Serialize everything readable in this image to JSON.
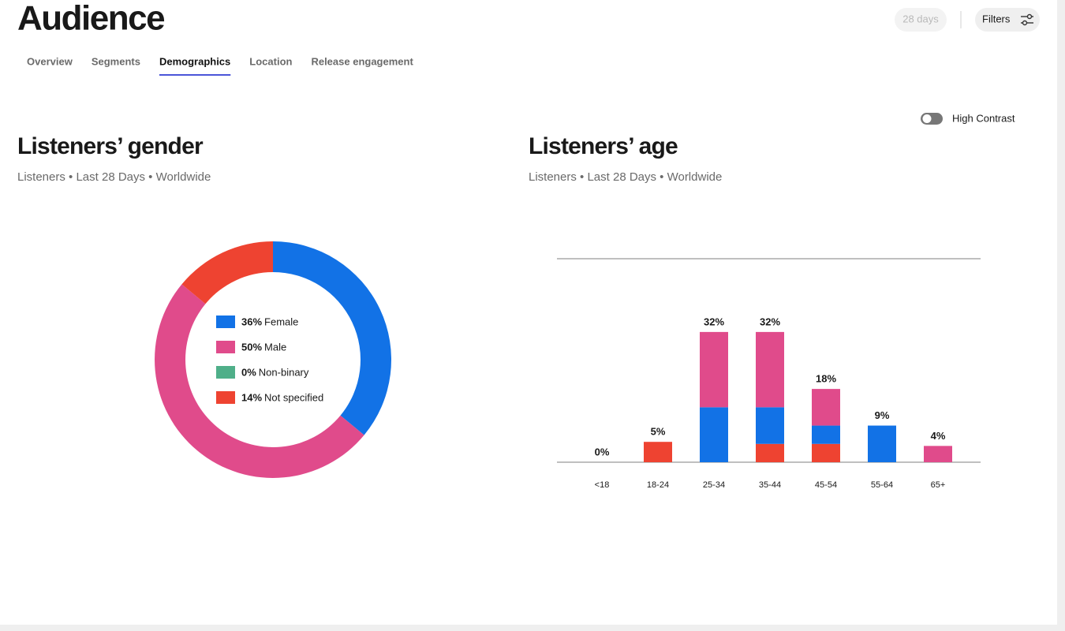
{
  "header": {
    "title": "Audience",
    "date_range": "28 days",
    "filters": "Filters",
    "tabs": [
      "Overview",
      "Segments",
      "Demographics",
      "Location",
      "Release engagement"
    ],
    "active_tab": 2
  },
  "high_contrast": {
    "label": "High Contrast",
    "on": false
  },
  "chart_data": [
    {
      "type": "pie",
      "donut": true,
      "title": "Listeners’ gender",
      "subtitle": "Listeners • Last 28 Days • Worldwide",
      "categories": [
        "Female",
        "Male",
        "Non-binary",
        "Not specified"
      ],
      "values": [
        36,
        50,
        0,
        14
      ],
      "value_labels": [
        "36%",
        "50%",
        "0%",
        "14%"
      ],
      "colors": [
        "#1272e6",
        "#e04b8b",
        "#4faf89",
        "#ee4331"
      ]
    },
    {
      "type": "bar",
      "stacked": true,
      "title": "Listeners’ age",
      "subtitle": "Listeners • Last 28 Days • Worldwide",
      "categories": [
        "<18",
        "18-24",
        "25-34",
        "35-44",
        "45-54",
        "55-64",
        "65+"
      ],
      "series": [
        {
          "color": "#ee4331",
          "values": [
            0,
            5,
            0,
            4.5,
            4.5,
            0,
            0
          ]
        },
        {
          "color": "#1272e6",
          "values": [
            0,
            0,
            13.5,
            9,
            4.5,
            9,
            0
          ]
        },
        {
          "color": "#e04b8b",
          "values": [
            0,
            0,
            18.5,
            18.5,
            9,
            0,
            4
          ]
        }
      ],
      "total_labels": [
        "0%",
        "5%",
        "32%",
        "32%",
        "18%",
        "9%",
        "4%"
      ],
      "ylim": [
        0,
        50
      ]
    }
  ]
}
